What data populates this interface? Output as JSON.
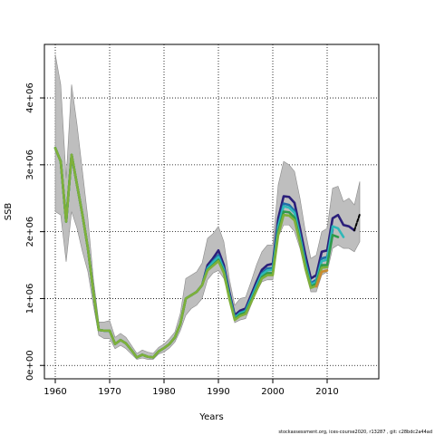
{
  "chart_data": {
    "type": "line",
    "title": "",
    "xlabel": "Years",
    "ylabel": "SSB",
    "xlim": [
      1958,
      2019.5
    ],
    "ylim": [
      -200000,
      4800000
    ],
    "x_ticks": [
      1960,
      1970,
      1980,
      1990,
      2000,
      2010
    ],
    "x_tick_labels": [
      "1960",
      "1970",
      "1980",
      "1990",
      "2000",
      "2010"
    ],
    "y_ticks": [
      0,
      1000000,
      2000000,
      3000000,
      4000000
    ],
    "y_tick_labels": [
      "0e+00",
      "1e+06",
      "2e+06",
      "3e+06",
      "4e+06"
    ],
    "grid": true,
    "confidence_band": {
      "color": "#bebebe",
      "x": [
        1960,
        1961,
        1962,
        1963,
        1964,
        1965,
        1966,
        1967,
        1968,
        1969,
        1970,
        1971,
        1972,
        1973,
        1974,
        1975,
        1976,
        1977,
        1978,
        1979,
        1980,
        1981,
        1982,
        1983,
        1984,
        1985,
        1986,
        1987,
        1988,
        1989,
        1990,
        1991,
        1992,
        1993,
        1994,
        1995,
        1996,
        1997,
        1998,
        1999,
        2000,
        2001,
        2002,
        2003,
        2004,
        2005,
        2006,
        2007,
        2008,
        2009,
        2010,
        2011,
        2012,
        2013,
        2014,
        2015,
        2016
      ],
      "upper": [
        4650000,
        4200000,
        2800000,
        4200000,
        3600000,
        2900000,
        2200000,
        1300000,
        650000,
        650000,
        670000,
        420000,
        480000,
        420000,
        300000,
        180000,
        230000,
        200000,
        180000,
        270000,
        320000,
        400000,
        500000,
        780000,
        1300000,
        1350000,
        1400000,
        1530000,
        1900000,
        1970000,
        2080000,
        1850000,
        1300000,
        900000,
        1000000,
        1020000,
        1250000,
        1500000,
        1700000,
        1800000,
        1800000,
        2700000,
        3050000,
        3000000,
        2900000,
        2500000,
        2000000,
        1600000,
        1650000,
        2000000,
        2050000,
        2650000,
        2680000,
        2450000,
        2500000,
        2400000,
        2750000
      ],
      "lower": [
        2300000,
        2250000,
        1550000,
        2300000,
        2050000,
        1700000,
        1400000,
        900000,
        450000,
        400000,
        400000,
        250000,
        300000,
        250000,
        170000,
        90000,
        110000,
        90000,
        90000,
        170000,
        200000,
        260000,
        350000,
        520000,
        750000,
        850000,
        900000,
        1000000,
        1280000,
        1380000,
        1420000,
        1300000,
        1000000,
        640000,
        680000,
        700000,
        900000,
        1100000,
        1250000,
        1280000,
        1280000,
        1920000,
        2100000,
        2100000,
        2000000,
        1750000,
        1400000,
        1100000,
        1100000,
        1350000,
        1400000,
        1750000,
        1800000,
        1750000,
        1750000,
        1700000,
        1850000
      ]
    },
    "series": [
      {
        "color": "#2b1f7a",
        "x": [
          1960,
          1961,
          1962,
          1963,
          1964,
          1965,
          1966,
          1967,
          1968,
          1969,
          1970,
          1971,
          1972,
          1973,
          1974,
          1975,
          1976,
          1977,
          1978,
          1979,
          1980,
          1981,
          1982,
          1983,
          1984,
          1985,
          1986,
          1987,
          1988,
          1989,
          1990,
          1991,
          1992,
          1993,
          1994,
          1995,
          1996,
          1997,
          1998,
          1999,
          2000,
          2001,
          2002,
          2003,
          2004,
          2005,
          2006,
          2007,
          2008,
          2009,
          2010,
          2011,
          2012,
          2013,
          2014,
          2015
        ],
        "values": [
          3250000,
          3050000,
          2150000,
          3150000,
          2700000,
          2250000,
          1750000,
          1100000,
          530000,
          520000,
          520000,
          320000,
          380000,
          330000,
          230000,
          120000,
          160000,
          130000,
          120000,
          210000,
          260000,
          320000,
          420000,
          620000,
          1000000,
          1050000,
          1100000,
          1200000,
          1500000,
          1600000,
          1720000,
          1500000,
          1100000,
          750000,
          820000,
          850000,
          1050000,
          1250000,
          1430000,
          1500000,
          1520000,
          2200000,
          2530000,
          2520000,
          2430000,
          2050000,
          1650000,
          1300000,
          1350000,
          1700000,
          1720000,
          2200000,
          2250000,
          2100000,
          2080000,
          2020000
        ]
      },
      {
        "color": "#1f6fa8",
        "x": [
          1960,
          1961,
          1962,
          1963,
          1964,
          1965,
          1966,
          1967,
          1968,
          1969,
          1970,
          1971,
          1972,
          1973,
          1974,
          1975,
          1976,
          1977,
          1978,
          1979,
          1980,
          1981,
          1982,
          1983,
          1984,
          1985,
          1986,
          1987,
          1988,
          1989,
          1990,
          1991,
          1992,
          1993,
          1994,
          1995,
          1996,
          1997,
          1998,
          1999,
          2000,
          2001,
          2002,
          2003,
          2004,
          2005,
          2006,
          2007,
          2008,
          2009,
          2010,
          2011
        ],
        "values": [
          3250000,
          3050000,
          2150000,
          3150000,
          2700000,
          2250000,
          1750000,
          1100000,
          530000,
          520000,
          520000,
          320000,
          380000,
          330000,
          230000,
          120000,
          160000,
          130000,
          120000,
          210000,
          260000,
          320000,
          420000,
          620000,
          1000000,
          1050000,
          1100000,
          1200000,
          1460000,
          1560000,
          1650000,
          1450000,
          1060000,
          720000,
          790000,
          820000,
          1010000,
          1200000,
          1380000,
          1450000,
          1460000,
          2100000,
          2420000,
          2400000,
          2310000,
          1950000,
          1550000,
          1230000,
          1280000,
          1600000,
          1620000,
          2030000
        ]
      },
      {
        "color": "#2fb8b8",
        "x": [
          1960,
          1961,
          1962,
          1963,
          1964,
          1965,
          1966,
          1967,
          1968,
          1969,
          1970,
          1971,
          1972,
          1973,
          1974,
          1975,
          1976,
          1977,
          1978,
          1979,
          1980,
          1981,
          1982,
          1983,
          1984,
          1985,
          1986,
          1987,
          1988,
          1989,
          1990,
          1991,
          1992,
          1993,
          1994,
          1995,
          1996,
          1997,
          1998,
          1999,
          2000,
          2001,
          2002,
          2003,
          2004,
          2005,
          2006,
          2007,
          2008,
          2009,
          2010,
          2011,
          2012,
          2013
        ],
        "values": [
          3250000,
          3050000,
          2150000,
          3150000,
          2700000,
          2250000,
          1750000,
          1100000,
          530000,
          520000,
          520000,
          320000,
          380000,
          330000,
          230000,
          120000,
          160000,
          130000,
          120000,
          210000,
          260000,
          320000,
          420000,
          620000,
          1000000,
          1050000,
          1100000,
          1200000,
          1450000,
          1540000,
          1620000,
          1430000,
          1040000,
          710000,
          780000,
          810000,
          990000,
          1180000,
          1360000,
          1420000,
          1430000,
          2070000,
          2380000,
          2360000,
          2280000,
          1920000,
          1520000,
          1210000,
          1250000,
          1560000,
          1580000,
          2080000,
          2050000,
          1920000
        ]
      },
      {
        "color": "#2f9a4a",
        "x": [
          1960,
          1961,
          1962,
          1963,
          1964,
          1965,
          1966,
          1967,
          1968,
          1969,
          1970,
          1971,
          1972,
          1973,
          1974,
          1975,
          1976,
          1977,
          1978,
          1979,
          1980,
          1981,
          1982,
          1983,
          1984,
          1985,
          1986,
          1987,
          1988,
          1989,
          1990,
          1991,
          1992,
          1993,
          1994,
          1995,
          1996,
          1997,
          1998,
          1999,
          2000,
          2001,
          2002,
          2003,
          2004,
          2005,
          2006,
          2007,
          2008,
          2009,
          2010,
          2011,
          2012
        ],
        "values": [
          3250000,
          3050000,
          2150000,
          3150000,
          2700000,
          2250000,
          1750000,
          1100000,
          530000,
          520000,
          520000,
          320000,
          380000,
          330000,
          230000,
          120000,
          160000,
          130000,
          120000,
          210000,
          260000,
          320000,
          420000,
          620000,
          1000000,
          1050000,
          1100000,
          1200000,
          1430000,
          1500000,
          1580000,
          1400000,
          1020000,
          690000,
          760000,
          790000,
          960000,
          1140000,
          1320000,
          1380000,
          1380000,
          2000000,
          2300000,
          2290000,
          2210000,
          1870000,
          1480000,
          1180000,
          1220000,
          1500000,
          1500000,
          1950000,
          1920000
        ]
      },
      {
        "color": "#7fb03a",
        "x": [
          1960,
          1961,
          1962,
          1963,
          1964,
          1965,
          1966,
          1967,
          1968,
          1969,
          1970,
          1971,
          1972,
          1973,
          1974,
          1975,
          1976,
          1977,
          1978,
          1979,
          1980,
          1981,
          1982,
          1983,
          1984,
          1985,
          1986,
          1987,
          1988,
          1989,
          1990,
          1991,
          1992,
          1993,
          1994,
          1995,
          1996,
          1997,
          1998,
          1999,
          2000,
          2001,
          2002,
          2003,
          2004,
          2005,
          2006,
          2007,
          2008,
          2009,
          2010
        ],
        "values": [
          3250000,
          3050000,
          2150000,
          3150000,
          2700000,
          2250000,
          1750000,
          1100000,
          530000,
          520000,
          520000,
          320000,
          380000,
          330000,
          230000,
          120000,
          160000,
          130000,
          120000,
          210000,
          260000,
          320000,
          420000,
          620000,
          1000000,
          1050000,
          1100000,
          1200000,
          1420000,
          1490000,
          1560000,
          1380000,
          1000000,
          680000,
          740000,
          770000,
          940000,
          1120000,
          1300000,
          1350000,
          1350000,
          1950000,
          2250000,
          2240000,
          2170000,
          1840000,
          1450000,
          1160000,
          1190000,
          1460000,
          1470000
        ]
      },
      {
        "color": "#c98a2f",
        "x": [
          2008,
          2009,
          2010
        ],
        "values": [
          1180000,
          1400000,
          1420000
        ]
      },
      {
        "color": "#000000",
        "dashed": true,
        "x": [
          2015,
          2016
        ],
        "values": [
          2020000,
          2260000
        ]
      }
    ]
  },
  "footer": {
    "credit": "stockassessment.org, ices-course2020, r13287 , git: c28bdc2a44ad"
  }
}
